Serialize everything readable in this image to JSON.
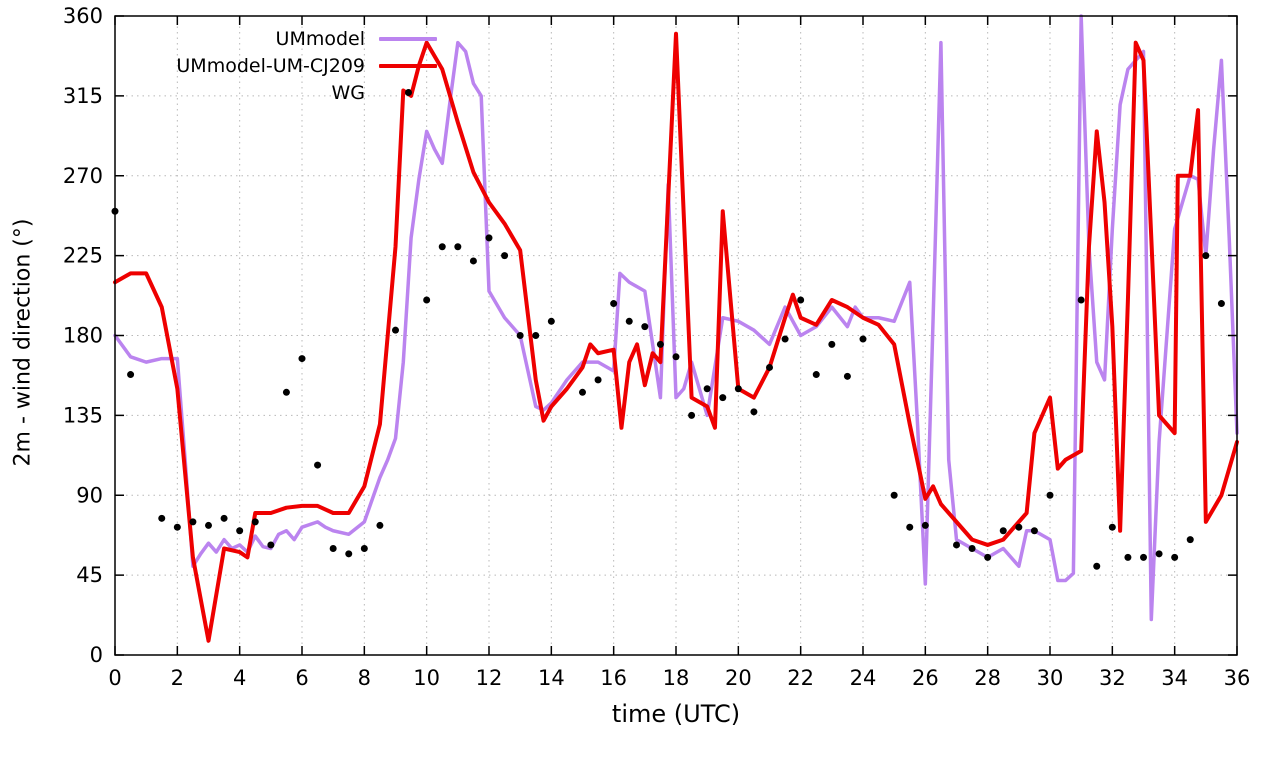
{
  "chart_data": {
    "type": "line",
    "title": "",
    "xlabel": "time (UTC)",
    "ylabel": "2m - wind direction (°)",
    "xlim": [
      0,
      36
    ],
    "ylim": [
      0,
      360
    ],
    "xticks": [
      0,
      2,
      4,
      6,
      8,
      10,
      12,
      14,
      16,
      18,
      20,
      22,
      24,
      26,
      28,
      30,
      32,
      34,
      36
    ],
    "yticks": [
      0,
      45,
      90,
      135,
      180,
      225,
      270,
      315,
      360
    ],
    "grid": true,
    "grid_style": "dotted",
    "legend_position": "top-left-inside",
    "colors": {
      "background": "#ffffff",
      "axis": "#000000",
      "grid": "#b8b8b8",
      "ummodel": "#bb84ef",
      "ummodel_cj209": "#ee0000",
      "wg": "#000000"
    },
    "series": [
      {
        "name": "UMmodel",
        "type": "line",
        "color": "#bb84ef",
        "width": 3.5,
        "points": [
          [
            0,
            180
          ],
          [
            0.5,
            168
          ],
          [
            1,
            165
          ],
          [
            1.5,
            167
          ],
          [
            2,
            167
          ],
          [
            2.25,
            110
          ],
          [
            2.5,
            50
          ],
          [
            2.75,
            57
          ],
          [
            3,
            63
          ],
          [
            3.25,
            58
          ],
          [
            3.5,
            65
          ],
          [
            3.75,
            60
          ],
          [
            4,
            62
          ],
          [
            4.25,
            58
          ],
          [
            4.5,
            67
          ],
          [
            4.75,
            61
          ],
          [
            5,
            60
          ],
          [
            5.25,
            68
          ],
          [
            5.5,
            70
          ],
          [
            5.75,
            65
          ],
          [
            6,
            72
          ],
          [
            6.5,
            75
          ],
          [
            6.75,
            72
          ],
          [
            7,
            70
          ],
          [
            7.5,
            68
          ],
          [
            8,
            75
          ],
          [
            8.5,
            100
          ],
          [
            8.75,
            110
          ],
          [
            9,
            122
          ],
          [
            9.25,
            165
          ],
          [
            9.5,
            235
          ],
          [
            9.75,
            268
          ],
          [
            10,
            295
          ],
          [
            10.25,
            285
          ],
          [
            10.5,
            277
          ],
          [
            10.75,
            312
          ],
          [
            11,
            345
          ],
          [
            11.25,
            340
          ],
          [
            11.5,
            322
          ],
          [
            11.75,
            315
          ],
          [
            12,
            205
          ],
          [
            12.5,
            190
          ],
          [
            13,
            180
          ],
          [
            13.25,
            160
          ],
          [
            13.5,
            140
          ],
          [
            13.75,
            138
          ],
          [
            14,
            142
          ],
          [
            14.5,
            155
          ],
          [
            15,
            165
          ],
          [
            15.5,
            165
          ],
          [
            16,
            160
          ],
          [
            16.2,
            215
          ],
          [
            16.5,
            210
          ],
          [
            17,
            205
          ],
          [
            17.25,
            175
          ],
          [
            17.5,
            145
          ],
          [
            17.75,
            265
          ],
          [
            18,
            145
          ],
          [
            18.25,
            150
          ],
          [
            18.5,
            165
          ],
          [
            18.75,
            150
          ],
          [
            19,
            135
          ],
          [
            19.5,
            190
          ],
          [
            20,
            188
          ],
          [
            20.5,
            183
          ],
          [
            21,
            175
          ],
          [
            21.5,
            196
          ],
          [
            22,
            180
          ],
          [
            22.5,
            185
          ],
          [
            23,
            196
          ],
          [
            23.5,
            185
          ],
          [
            23.75,
            196
          ],
          [
            24,
            190
          ],
          [
            24.5,
            190
          ],
          [
            25,
            188
          ],
          [
            25.5,
            210
          ],
          [
            25.75,
            130
          ],
          [
            26,
            40
          ],
          [
            26.25,
            190
          ],
          [
            26.5,
            345
          ],
          [
            26.75,
            110
          ],
          [
            27,
            65
          ],
          [
            27.5,
            60
          ],
          [
            28,
            55
          ],
          [
            28.5,
            60
          ],
          [
            29,
            50
          ],
          [
            29.25,
            70
          ],
          [
            29.5,
            70
          ],
          [
            30,
            65
          ],
          [
            30.25,
            42
          ],
          [
            30.5,
            42
          ],
          [
            30.75,
            46
          ],
          [
            31,
            360
          ],
          [
            31.25,
            230
          ],
          [
            31.5,
            165
          ],
          [
            31.75,
            155
          ],
          [
            32,
            240
          ],
          [
            32.25,
            310
          ],
          [
            32.5,
            330
          ],
          [
            33,
            340
          ],
          [
            33.25,
            20
          ],
          [
            33.5,
            120
          ],
          [
            34,
            240
          ],
          [
            34.5,
            270
          ],
          [
            34.75,
            268
          ],
          [
            35,
            225
          ],
          [
            35.25,
            285
          ],
          [
            35.5,
            335
          ],
          [
            35.75,
            235
          ],
          [
            36,
            125
          ]
        ]
      },
      {
        "name": "UMmodel-UM-CJ209",
        "type": "line",
        "color": "#ee0000",
        "width": 4,
        "points": [
          [
            0,
            210
          ],
          [
            0.5,
            215
          ],
          [
            1,
            215
          ],
          [
            1.5,
            196
          ],
          [
            2,
            150
          ],
          [
            2.5,
            55
          ],
          [
            3,
            8
          ],
          [
            3.5,
            60
          ],
          [
            4,
            58
          ],
          [
            4.25,
            55
          ],
          [
            4.5,
            80
          ],
          [
            5,
            80
          ],
          [
            5.5,
            83
          ],
          [
            6,
            84
          ],
          [
            6.5,
            84
          ],
          [
            7,
            80
          ],
          [
            7.5,
            80
          ],
          [
            8,
            95
          ],
          [
            8.5,
            130
          ],
          [
            9,
            230
          ],
          [
            9.25,
            318
          ],
          [
            9.5,
            315
          ],
          [
            9.75,
            332
          ],
          [
            10,
            345
          ],
          [
            10.5,
            330
          ],
          [
            11,
            300
          ],
          [
            11.5,
            272
          ],
          [
            12,
            255
          ],
          [
            12.5,
            243
          ],
          [
            13,
            228
          ],
          [
            13.5,
            155
          ],
          [
            13.75,
            132
          ],
          [
            14,
            140
          ],
          [
            14.5,
            150
          ],
          [
            15,
            162
          ],
          [
            15.25,
            175
          ],
          [
            15.5,
            170
          ],
          [
            16,
            172
          ],
          [
            16.25,
            128
          ],
          [
            16.5,
            165
          ],
          [
            16.75,
            175
          ],
          [
            17,
            152
          ],
          [
            17.25,
            170
          ],
          [
            17.5,
            165
          ],
          [
            18,
            350
          ],
          [
            18.5,
            145
          ],
          [
            19,
            140
          ],
          [
            19.25,
            128
          ],
          [
            19.5,
            250
          ],
          [
            20,
            150
          ],
          [
            20.5,
            145
          ],
          [
            21,
            162
          ],
          [
            21.5,
            190
          ],
          [
            21.75,
            203
          ],
          [
            22,
            190
          ],
          [
            22.5,
            186
          ],
          [
            23,
            200
          ],
          [
            23.5,
            196
          ],
          [
            24,
            190
          ],
          [
            24.5,
            186
          ],
          [
            25,
            175
          ],
          [
            25.5,
            130
          ],
          [
            26,
            88
          ],
          [
            26.25,
            95
          ],
          [
            26.5,
            85
          ],
          [
            27,
            75
          ],
          [
            27.5,
            65
          ],
          [
            28,
            62
          ],
          [
            28.5,
            65
          ],
          [
            29,
            75
          ],
          [
            29.25,
            80
          ],
          [
            29.5,
            125
          ],
          [
            29.75,
            135
          ],
          [
            30,
            145
          ],
          [
            30.25,
            105
          ],
          [
            30.5,
            110
          ],
          [
            31,
            115
          ],
          [
            31.25,
            230
          ],
          [
            31.5,
            295
          ],
          [
            31.75,
            255
          ],
          [
            32,
            185
          ],
          [
            32.25,
            70
          ],
          [
            32.5,
            200
          ],
          [
            32.75,
            345
          ],
          [
            33,
            335
          ],
          [
            33.5,
            135
          ],
          [
            34,
            125
          ],
          [
            34.1,
            270
          ],
          [
            34.5,
            270
          ],
          [
            34.75,
            307
          ],
          [
            35,
            75
          ],
          [
            35.5,
            90
          ],
          [
            36,
            120
          ]
        ]
      },
      {
        "name": "WG",
        "type": "scatter",
        "color": "#000000",
        "marker": "dot",
        "marker_size": 3.5,
        "points": [
          [
            0,
            250
          ],
          [
            0.5,
            158
          ],
          [
            1.5,
            77
          ],
          [
            2,
            72
          ],
          [
            2.5,
            75
          ],
          [
            3,
            73
          ],
          [
            3.5,
            77
          ],
          [
            4,
            70
          ],
          [
            4.5,
            75
          ],
          [
            5,
            62
          ],
          [
            5.5,
            148
          ],
          [
            6,
            167
          ],
          [
            6.5,
            107
          ],
          [
            7,
            60
          ],
          [
            7.5,
            57
          ],
          [
            8,
            60
          ],
          [
            8.5,
            73
          ],
          [
            9,
            183
          ],
          [
            10,
            200
          ],
          [
            10.5,
            230
          ],
          [
            11,
            230
          ],
          [
            11.5,
            222
          ],
          [
            12,
            235
          ],
          [
            12.5,
            225
          ],
          [
            13,
            180
          ],
          [
            13.5,
            180
          ],
          [
            14,
            188
          ],
          [
            15,
            148
          ],
          [
            15.5,
            155
          ],
          [
            16,
            198
          ],
          [
            16.5,
            188
          ],
          [
            17,
            185
          ],
          [
            17.5,
            175
          ],
          [
            18,
            168
          ],
          [
            18.5,
            135
          ],
          [
            19,
            150
          ],
          [
            19.5,
            145
          ],
          [
            20,
            150
          ],
          [
            20.5,
            137
          ],
          [
            21,
            162
          ],
          [
            21.5,
            178
          ],
          [
            22,
            200
          ],
          [
            22.5,
            158
          ],
          [
            23,
            175
          ],
          [
            23.5,
            157
          ],
          [
            24,
            178
          ],
          [
            25,
            90
          ],
          [
            25.5,
            72
          ],
          [
            26,
            73
          ],
          [
            27,
            62
          ],
          [
            27.5,
            60
          ],
          [
            28,
            55
          ],
          [
            28.5,
            70
          ],
          [
            29,
            72
          ],
          [
            29.5,
            70
          ],
          [
            30,
            90
          ],
          [
            31,
            200
          ],
          [
            31.5,
            50
          ],
          [
            32,
            72
          ],
          [
            32.5,
            55
          ],
          [
            33,
            55
          ],
          [
            33.5,
            57
          ],
          [
            34,
            55
          ],
          [
            34.5,
            65
          ],
          [
            35,
            225
          ],
          [
            35.5,
            198
          ]
        ]
      }
    ]
  }
}
